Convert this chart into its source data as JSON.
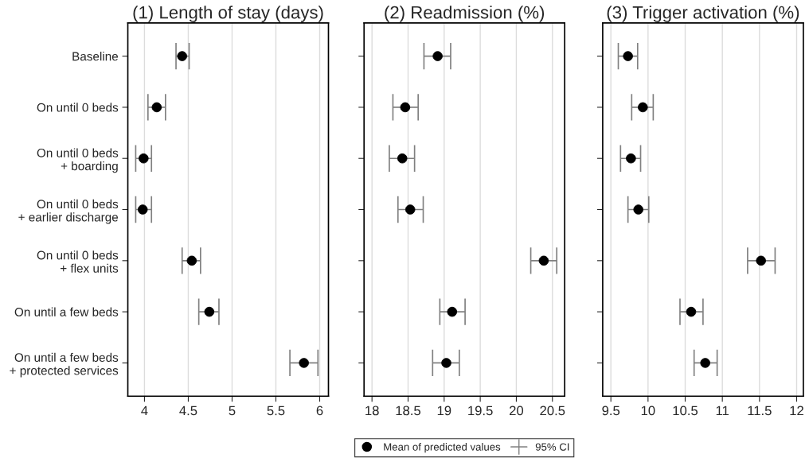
{
  "chart_data": [
    {
      "type": "scatter",
      "title": "(1) Length of stay (days)",
      "orientation": "horizontal",
      "categories": [
        "Baseline",
        "On until 0 beds",
        "On until 0 beds\n+ boarding",
        "On until 0 beds\n+ earlier discharge",
        "On until 0 beds\n+ flex units",
        "On until a few beds",
        "On until a few beds\n+ protected services"
      ],
      "series": [
        {
          "color": "#000000",
          "values": [
            4.43,
            4.14,
            3.99,
            3.98,
            4.54,
            4.74,
            5.82
          ],
          "errors": [
            [
              4.36,
              4.51
            ],
            [
              4.04,
              4.24
            ],
            [
              3.9,
              4.08
            ],
            [
              3.9,
              4.08
            ],
            [
              4.43,
              4.64
            ],
            [
              4.62,
              4.85
            ],
            [
              5.66,
              5.98
            ]
          ]
        }
      ],
      "xlim": [
        3.81,
        6.1
      ],
      "xticks": [
        4,
        4.5,
        5,
        5.5,
        6
      ],
      "grid": "x",
      "marker": "circle"
    },
    {
      "type": "scatter",
      "title": "(2) Readmission (%)",
      "orientation": "horizontal",
      "categories": [
        null,
        null,
        null,
        null,
        null,
        null,
        null
      ],
      "series": [
        {
          "name": "Mean of predicted values",
          "color": "#000000",
          "values": [
            18.91,
            18.46,
            18.42,
            18.53,
            20.38,
            19.11,
            19.03
          ],
          "errors": [
            [
              18.72,
              19.09
            ],
            [
              18.29,
              18.64
            ],
            [
              18.24,
              18.59
            ],
            [
              18.36,
              18.71
            ],
            [
              20.2,
              20.56
            ],
            [
              18.94,
              19.29
            ],
            [
              18.84,
              19.21
            ]
          ]
        }
      ],
      "xlim": [
        17.89,
        20.67
      ],
      "xticks": [
        18,
        18.5,
        19,
        19.5,
        20,
        20.5
      ],
      "grid": "x",
      "marker": "circle",
      "tick_labels": "x",
      "legend": "bottom",
      "annotations": [
        "95% CI"
      ]
    },
    {
      "type": "scatter",
      "title": "(3) Trigger activation (%)",
      "orientation": "horizontal",
      "categories": [
        null,
        null,
        null,
        null,
        null,
        null,
        null
      ],
      "series": [
        {
          "color": "#000000",
          "values": [
            9.73,
            9.93,
            9.77,
            9.87,
            11.52,
            10.58,
            10.77
          ],
          "errors": [
            [
              9.6,
              9.86
            ],
            [
              9.78,
              10.07
            ],
            [
              9.63,
              9.9
            ],
            [
              9.73,
              10.01
            ],
            [
              11.34,
              11.71
            ],
            [
              10.43,
              10.74
            ],
            [
              10.62,
              10.93
            ]
          ]
        }
      ],
      "xlim": [
        9.39,
        12.09
      ],
      "xticks": [
        9.5,
        10,
        10.5,
        11,
        11.5,
        12
      ],
      "grid": "x",
      "marker": "circle",
      "tick_labels": "x"
    }
  ]
}
